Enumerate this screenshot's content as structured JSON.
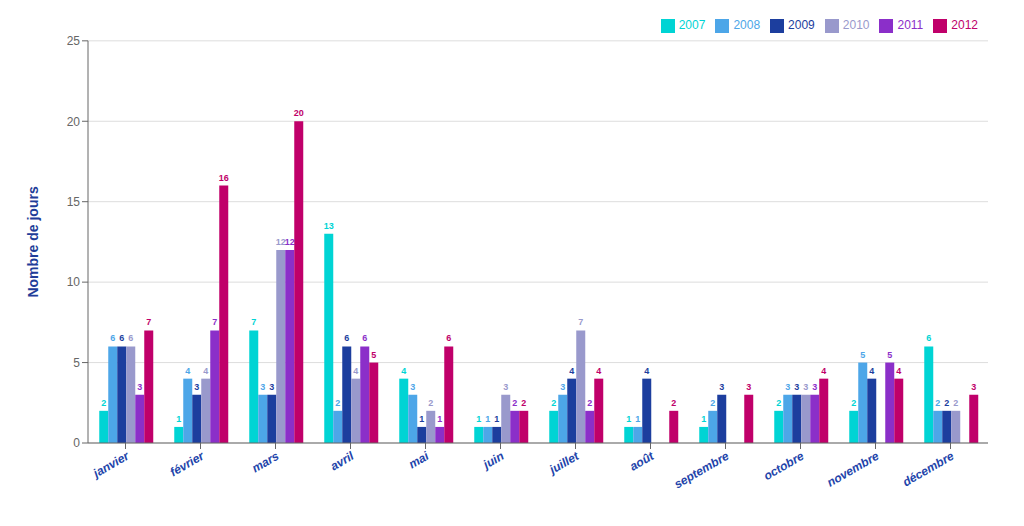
{
  "chart_data": {
    "type": "bar",
    "ylabel": "Nombre de jours",
    "categories": [
      "janvier",
      "février",
      "mars",
      "avril",
      "mai",
      "juin",
      "juillet",
      "août",
      "septembre",
      "octobre",
      "novembre",
      "décembre"
    ],
    "series": [
      {
        "name": "2007",
        "color": "#00D4D4",
        "values": [
          2,
          1,
          7,
          13,
          4,
          1,
          2,
          1,
          1,
          2,
          2,
          6
        ]
      },
      {
        "name": "2008",
        "color": "#4DA6E8",
        "values": [
          6,
          4,
          3,
          2,
          3,
          1,
          3,
          1,
          2,
          3,
          5,
          2
        ]
      },
      {
        "name": "2009",
        "color": "#1C3E9E",
        "values": [
          6,
          3,
          3,
          6,
          1,
          1,
          4,
          4,
          3,
          3,
          4,
          2
        ]
      },
      {
        "name": "2010",
        "color": "#9999CC",
        "values": [
          6,
          4,
          12,
          4,
          2,
          3,
          7,
          0,
          0,
          3,
          0,
          2
        ]
      },
      {
        "name": "2011",
        "color": "#8B2FC9",
        "values": [
          3,
          7,
          12,
          6,
          1,
          2,
          2,
          0,
          0,
          3,
          5,
          0
        ]
      },
      {
        "name": "2012",
        "color": "#C0006A",
        "values": [
          7,
          16,
          20,
          5,
          6,
          2,
          4,
          2,
          3,
          4,
          4,
          3
        ]
      }
    ],
    "ylim": [
      0,
      25
    ],
    "yticks": [
      0,
      5,
      10,
      15,
      20,
      25
    ],
    "grid": true,
    "legend": "upper right",
    "data_labels": true
  }
}
